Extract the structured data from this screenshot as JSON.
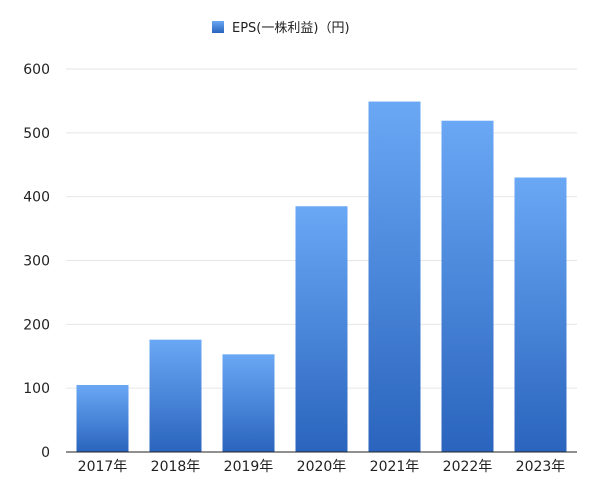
{
  "chart_data": {
    "type": "bar",
    "categories": [
      "2017年",
      "2018年",
      "2019年",
      "2020年",
      "2021年",
      "2022年",
      "2023年"
    ],
    "series": [
      {
        "name": "EPS(一株利益)（円)",
        "values": [
          105,
          176,
          153,
          385,
          549,
          519,
          430
        ]
      }
    ],
    "title": "",
    "xlabel": "",
    "ylabel": "",
    "ylim": [
      0,
      600
    ],
    "yticks": [
      0,
      100,
      200,
      300,
      400,
      500,
      600
    ],
    "grid": true,
    "legend_position": "top-center",
    "colors": {
      "bar_top": "#6aa8f5",
      "bar_bottom": "#2a64bd",
      "grid": "#e6e6e6",
      "axis": "#222222"
    }
  }
}
